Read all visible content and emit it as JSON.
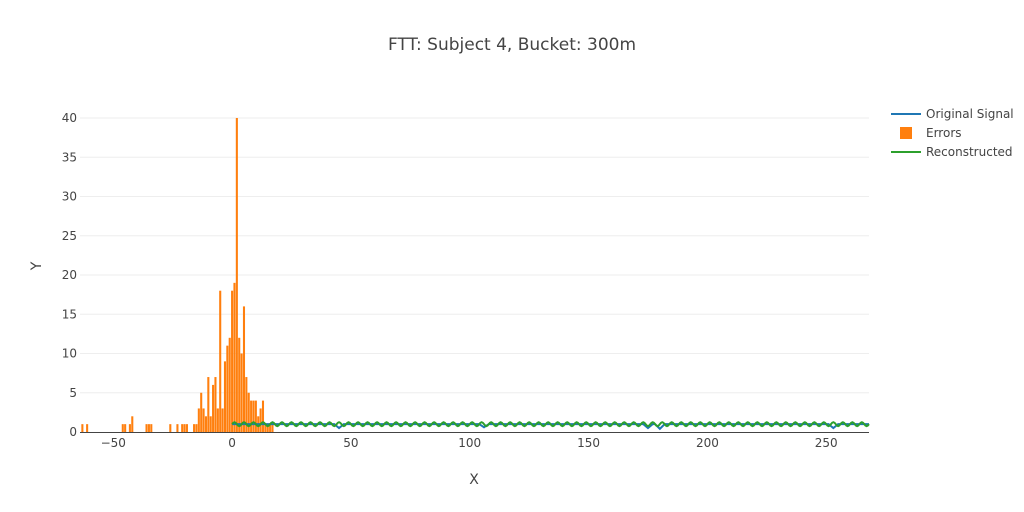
{
  "chart_data": {
    "type": "bar",
    "title": "FTT: Subject 4, Bucket: 300m",
    "xlabel": "X",
    "ylabel": "Y",
    "xlim": [
      -64,
      268
    ],
    "ylim": [
      0,
      40
    ],
    "x_ticks": [
      -50,
      0,
      50,
      100,
      150,
      200,
      250
    ],
    "x_tick_labels": [
      "−50",
      "0",
      "50",
      "100",
      "150",
      "200",
      "250"
    ],
    "y_ticks": [
      0,
      5,
      10,
      15,
      20,
      25,
      30,
      35,
      40
    ],
    "y_tick_labels": [
      "0",
      "5",
      "10",
      "15",
      "20",
      "25",
      "30",
      "35",
      "40"
    ],
    "grid": true,
    "legend_position": "top-right",
    "colors": {
      "original": "#1f77b4",
      "errors": "#ff7f0e",
      "reconstructed": "#2ca02c"
    },
    "series": [
      {
        "name": "Original Signal",
        "type": "line",
        "x_start": 0,
        "x_end": 268,
        "baseline": 1,
        "dips": [
          [
            45,
            0.5
          ],
          [
            106,
            0.6
          ],
          [
            175,
            0.5
          ],
          [
            180,
            0.4
          ],
          [
            253,
            0.5
          ]
        ]
      },
      {
        "name": "Errors",
        "type": "bar",
        "bin_width": 1,
        "x": [
          -63,
          -61,
          -46,
          -45,
          -43,
          -42,
          -36,
          -35,
          -34,
          -26,
          -23,
          -21,
          -20,
          -19,
          -16,
          -15,
          -14,
          -13,
          -12,
          -11,
          -10,
          -9,
          -8,
          -7,
          -6,
          -5,
          -4,
          -3,
          -2,
          -1,
          0,
          1,
          2,
          3,
          4,
          5,
          6,
          7,
          8,
          9,
          10,
          11,
          12,
          13,
          14,
          15,
          16,
          17
        ],
        "values": [
          1,
          1,
          1,
          1,
          1,
          2,
          1,
          1,
          1,
          1,
          1,
          1,
          1,
          1,
          1,
          1,
          3,
          5,
          3,
          2,
          7,
          2,
          6,
          7,
          3,
          18,
          3,
          9,
          11,
          12,
          18,
          19,
          40,
          12,
          10,
          16,
          7,
          5,
          4,
          4,
          4,
          2,
          3,
          4,
          1,
          1,
          1,
          1
        ]
      },
      {
        "name": "Reconstructed",
        "type": "line",
        "x_start": 0,
        "x_end": 268,
        "baseline": 1,
        "amplitude": 0.25,
        "period": 4
      }
    ]
  }
}
